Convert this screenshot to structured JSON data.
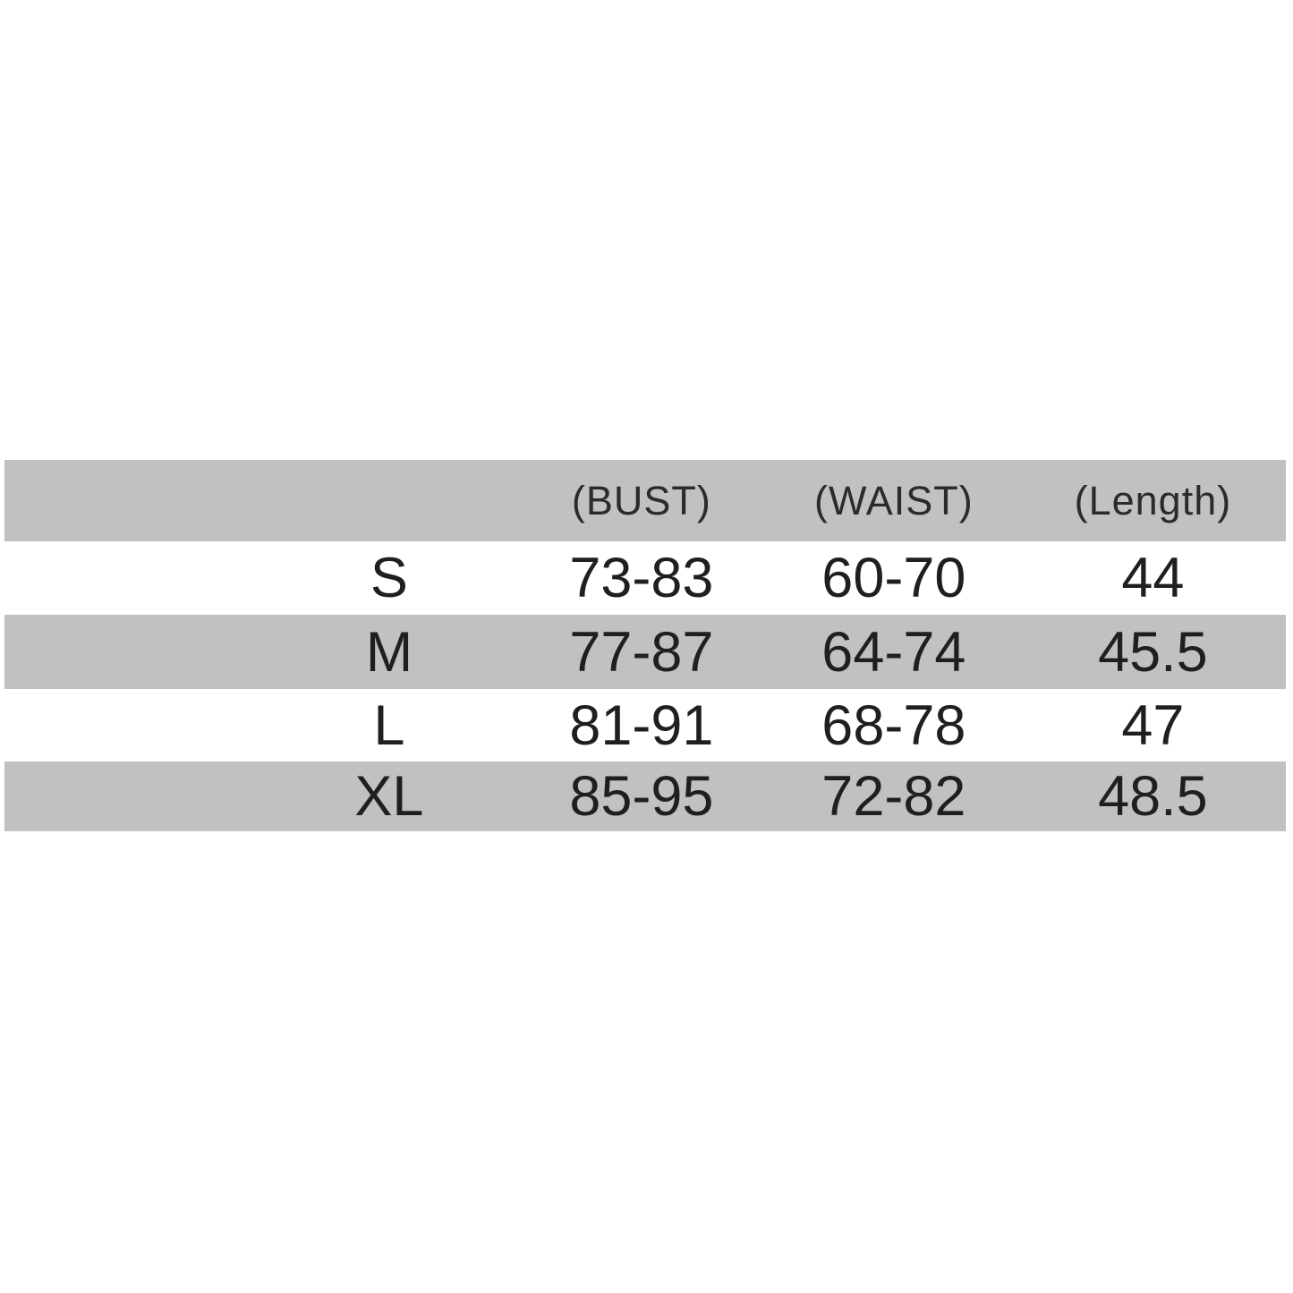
{
  "size_chart": {
    "header": {
      "size": "",
      "bust": "(BUST)",
      "waist": "(WAIST)",
      "length": "(Length)"
    },
    "rows": [
      {
        "size": "S",
        "bust": "73-83",
        "waist": "60-70",
        "length": "44"
      },
      {
        "size": "M",
        "bust": "77-87",
        "waist": "64-74",
        "length": "45.5"
      },
      {
        "size": "L",
        "bust": "81-91",
        "waist": "68-78",
        "length": "47"
      },
      {
        "size": "XL",
        "bust": "85-95",
        "waist": "72-82",
        "length": "48.5"
      }
    ],
    "colors": {
      "band_gray": "#c1c1c1",
      "text_dark": "#1f1f1f",
      "background": "#ffffff"
    }
  }
}
